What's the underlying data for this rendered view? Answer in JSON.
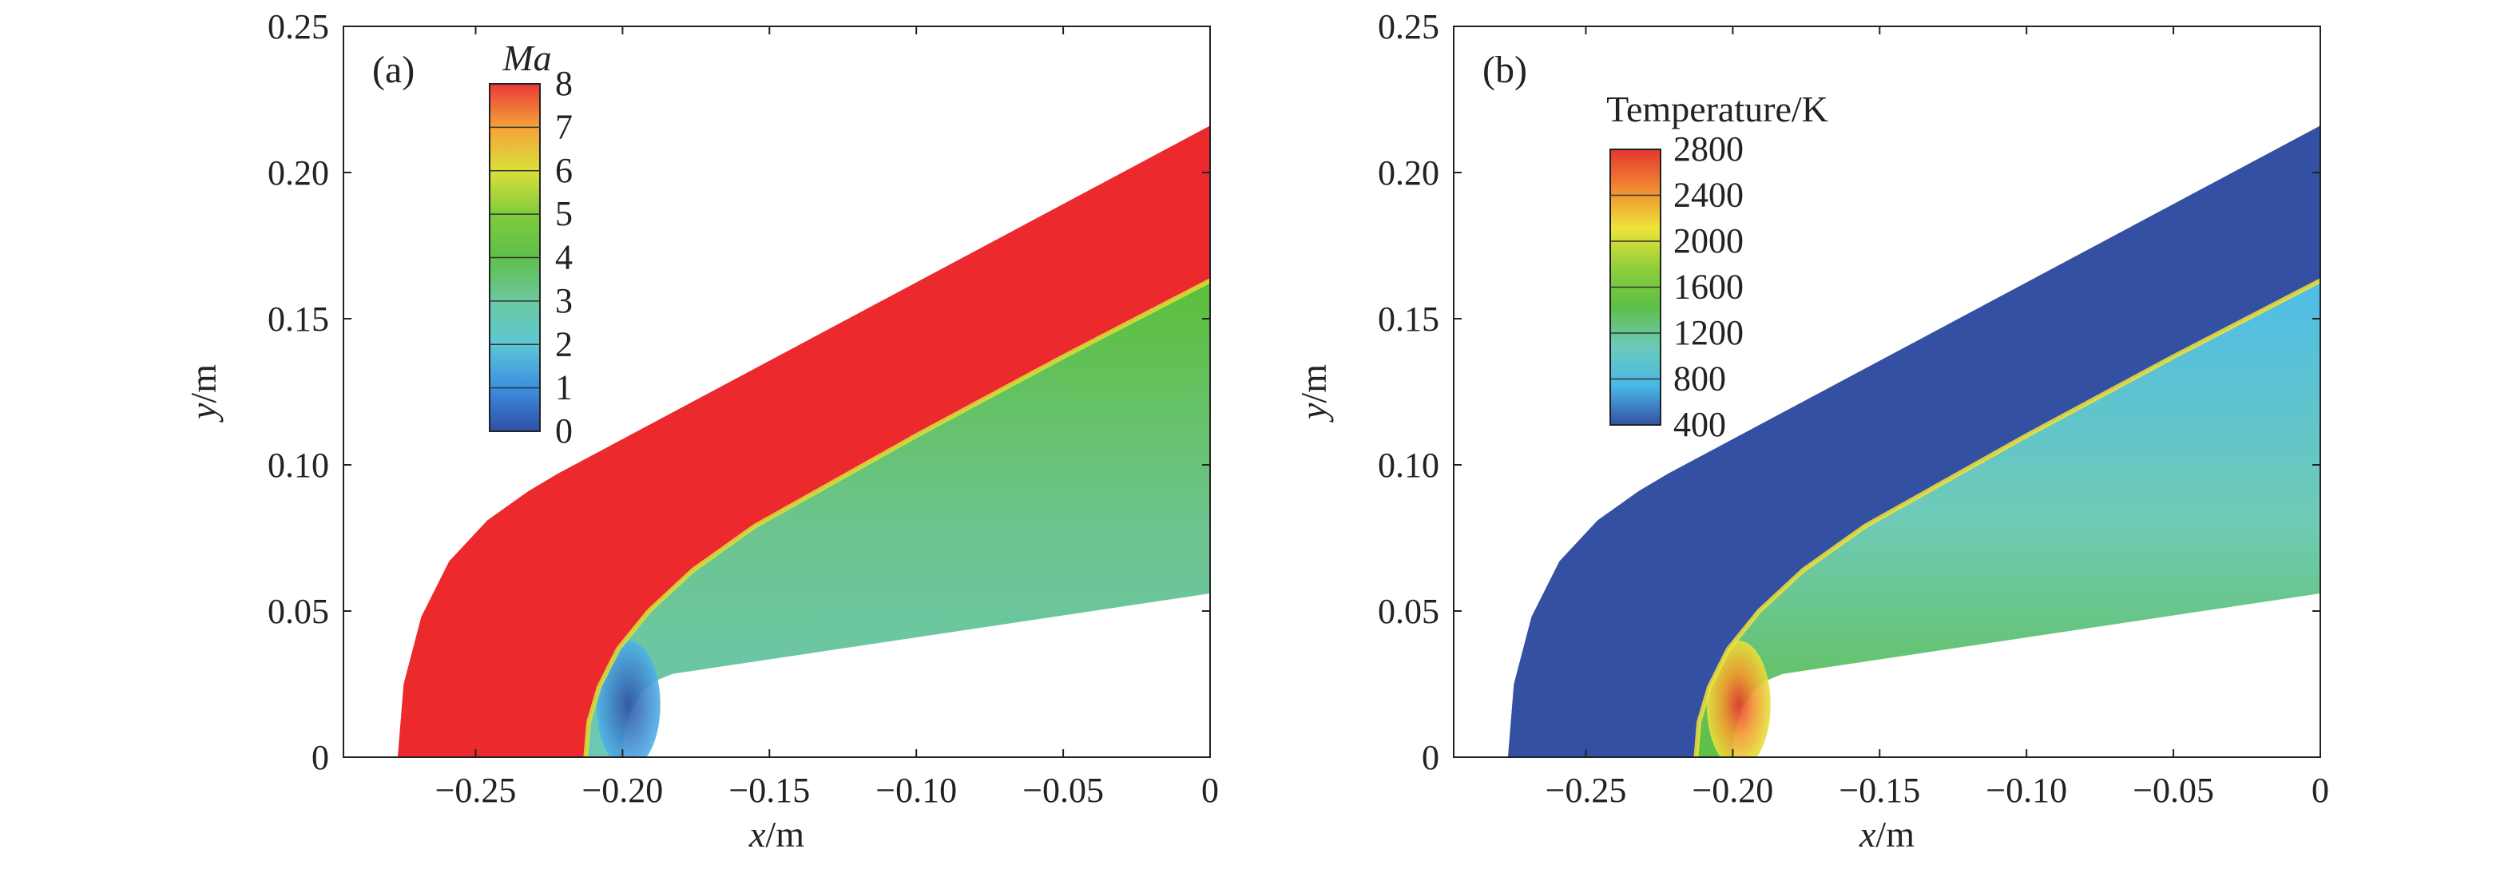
{
  "chart_data": [
    {
      "type": "heatmap",
      "panel_label": "(a)",
      "xlabel": {
        "var": "x",
        "unit": "/m"
      },
      "ylabel": {
        "var": "y",
        "unit": "/m"
      },
      "xlim": [
        -0.295,
        0
      ],
      "ylim": [
        0,
        0.25
      ],
      "xticks": [
        -0.25,
        -0.2,
        -0.15,
        -0.1,
        -0.05,
        0
      ],
      "xtick_labels": [
        "−0.25",
        "−0.20",
        "−0.15",
        "−0.10",
        "−0.05",
        "0"
      ],
      "yticks": [
        0,
        0.05,
        0.1,
        0.15,
        0.2,
        0.25
      ],
      "ytick_labels": [
        "0",
        "0.05",
        "0.10",
        "0.15",
        "0.20",
        "0.25"
      ],
      "colorbar": {
        "title": "Ma",
        "title_style": "italic",
        "levels": [
          0,
          1,
          2,
          3,
          4,
          5,
          6,
          7,
          8
        ],
        "labels": [
          "0",
          "1",
          "2",
          "3",
          "4",
          "5",
          "6",
          "7",
          "8"
        ],
        "colors": [
          "#2f4fa3",
          "#3d8fe0",
          "#5cc7d6",
          "#6cc9a0",
          "#5fbf4a",
          "#80cc3c",
          "#d9e03a",
          "#f6a23a",
          "#e83a36"
        ]
      },
      "regions": {
        "freestream": {
          "quantity_value": 8,
          "color": "#ec2a2e"
        },
        "shock_layer": {
          "quantity_range": [
            2.5,
            4
          ],
          "colors": [
            "#5bbf3a",
            "#6cc48c",
            "#6bc8b4"
          ]
        },
        "stagnation": {
          "quantity_value": 1,
          "colors": [
            "#2f4fa3",
            "#4fb3e8"
          ]
        }
      },
      "geometry_data_units": {
        "wall": [
          [
            -0.2,
            0
          ],
          [
            -0.1995,
            0.008
          ],
          [
            -0.197,
            0.016
          ],
          [
            -0.1935,
            0.022
          ],
          [
            -0.189,
            0.026
          ],
          [
            -0.183,
            0.0285
          ],
          [
            0,
            0.056
          ]
        ],
        "shock": [
          [
            -0.2125,
            0
          ],
          [
            -0.2115,
            0.012
          ],
          [
            -0.208,
            0.024
          ],
          [
            -0.2015,
            0.037
          ],
          [
            -0.191,
            0.05
          ],
          [
            -0.176,
            0.064
          ],
          [
            -0.155,
            0.079
          ],
          [
            -0.1,
            0.11
          ],
          [
            -0.05,
            0.137
          ],
          [
            0,
            0.163
          ]
        ],
        "outer": [
          [
            -0.2765,
            0
          ],
          [
            -0.2745,
            0.025
          ],
          [
            -0.2685,
            0.048
          ],
          [
            -0.259,
            0.067
          ],
          [
            -0.246,
            0.081
          ],
          [
            -0.232,
            0.091
          ],
          [
            -0.222,
            0.097
          ],
          [
            0,
            0.216
          ]
        ]
      }
    },
    {
      "type": "heatmap",
      "panel_label": "(b)",
      "xlabel": {
        "var": "x",
        "unit": "/m"
      },
      "ylabel": {
        "var": "y",
        "unit": "/m"
      },
      "xlim": [
        -0.295,
        0
      ],
      "ylim": [
        0,
        0.25
      ],
      "xticks": [
        -0.25,
        -0.2,
        -0.15,
        -0.1,
        -0.05,
        0
      ],
      "xtick_labels": [
        "−0.25",
        "−0.20",
        "−0.15",
        "−0.10",
        "−0.05",
        "0"
      ],
      "yticks": [
        0,
        0.05,
        0.1,
        0.15,
        0.2,
        0.25
      ],
      "ytick_labels": [
        "0",
        "0.05",
        "0.10",
        "0.15",
        "0.20",
        "0.25"
      ],
      "colorbar": {
        "title": "Temperature/K",
        "title_style": "normal",
        "levels": [
          400,
          800,
          1200,
          1600,
          2000,
          2400,
          2800
        ],
        "labels": [
          "400",
          "800",
          "1200",
          "1600",
          "2000",
          "2400",
          "2800"
        ],
        "colors": [
          "#3450a3",
          "#49b9e8",
          "#6ccab8",
          "#5dbf48",
          "#8fcf3a",
          "#efe33a",
          "#f08a30",
          "#e6352f"
        ]
      },
      "regions": {
        "freestream": {
          "quantity_value": 300,
          "color": "#3450a3"
        },
        "shock_layer": {
          "quantity_range": [
            800,
            2000
          ],
          "colors": [
            "#4fbde8",
            "#6fcab6",
            "#5fbf45"
          ]
        },
        "stagnation": {
          "quantity_value": 2800,
          "colors": [
            "#e8352f",
            "#f39a2e",
            "#e5e33c"
          ]
        }
      },
      "geometry_data_units": {
        "wall": [
          [
            -0.2,
            0
          ],
          [
            -0.1995,
            0.008
          ],
          [
            -0.197,
            0.016
          ],
          [
            -0.1935,
            0.022
          ],
          [
            -0.189,
            0.026
          ],
          [
            -0.183,
            0.0285
          ],
          [
            0,
            0.056
          ]
        ],
        "shock": [
          [
            -0.2125,
            0
          ],
          [
            -0.2115,
            0.012
          ],
          [
            -0.208,
            0.024
          ],
          [
            -0.2015,
            0.037
          ],
          [
            -0.191,
            0.05
          ],
          [
            -0.176,
            0.064
          ],
          [
            -0.155,
            0.079
          ],
          [
            -0.1,
            0.11
          ],
          [
            -0.05,
            0.137
          ],
          [
            0,
            0.163
          ]
        ],
        "outer": [
          [
            -0.2765,
            0
          ],
          [
            -0.2745,
            0.025
          ],
          [
            -0.2685,
            0.048
          ],
          [
            -0.259,
            0.067
          ],
          [
            -0.246,
            0.081
          ],
          [
            -0.232,
            0.091
          ],
          [
            -0.222,
            0.097
          ],
          [
            0,
            0.216
          ]
        ]
      }
    }
  ]
}
